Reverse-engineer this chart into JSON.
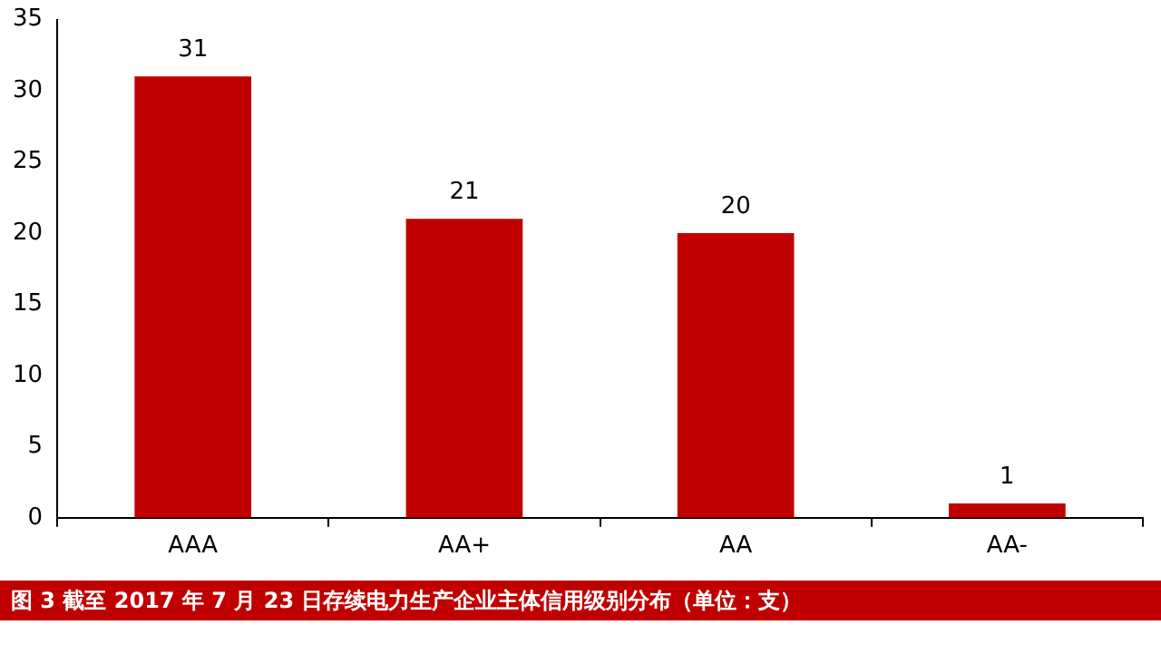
{
  "chart_data": {
    "type": "bar",
    "title": "图 3   截至 2017 年 7 月 23 日存续电力生产企业主体信用级别分布（单位：支）",
    "categories": [
      "AAA",
      "AA+",
      "AA",
      "AA-"
    ],
    "values": [
      31,
      21,
      20,
      1
    ],
    "color": "#c00000",
    "ylim": [
      0,
      35
    ],
    "yticks": [
      0,
      5,
      10,
      15,
      20,
      25,
      30,
      35
    ],
    "grid": false,
    "legend": false,
    "data_labels": true
  }
}
